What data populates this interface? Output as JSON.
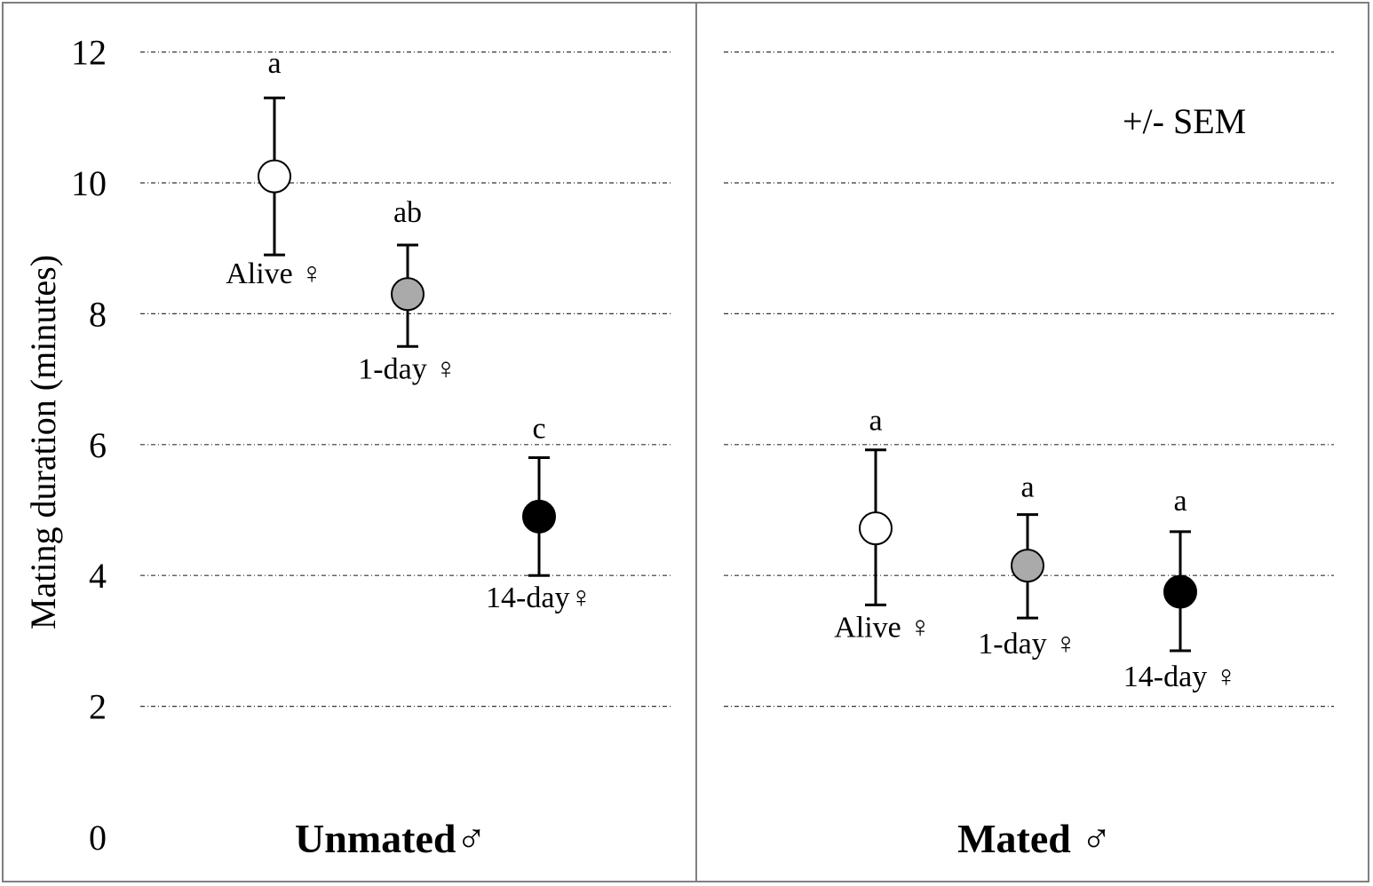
{
  "chart_data": {
    "type": "scatter",
    "ylabel": "Mating duration (minutes)",
    "ylim": [
      0,
      12
    ],
    "yticks": [
      "0",
      "2",
      "4",
      "6",
      "8",
      "10",
      "12"
    ],
    "grid": true,
    "note": "+/- SEM",
    "colors": {
      "alive": "#ffffff",
      "one_day": "#aaaaaa",
      "fourteen_day": "#000000"
    },
    "panels": [
      {
        "title": "Unmated♂",
        "points": [
          {
            "label": "Alive ♀",
            "y": 10.1,
            "err_low": 8.9,
            "err_high": 11.3,
            "letter": "a",
            "color": "#ffffff"
          },
          {
            "label": "1-day ♀",
            "y": 8.3,
            "err_low": 7.5,
            "err_high": 9.05,
            "letter": "ab",
            "color": "#aaaaaa"
          },
          {
            "label": "14-day♀",
            "y": 4.9,
            "err_low": 4.0,
            "err_high": 5.8,
            "letter": "c",
            "color": "#000000"
          }
        ]
      },
      {
        "title": "Mated ♂",
        "points": [
          {
            "label": "Alive ♀",
            "y": 4.72,
            "err_low": 3.55,
            "err_high": 5.92,
            "letter": "a",
            "color": "#ffffff"
          },
          {
            "label": "1-day ♀",
            "y": 4.15,
            "err_low": 3.35,
            "err_high": 4.93,
            "letter": "a",
            "color": "#aaaaaa"
          },
          {
            "label": "14-day ♀",
            "y": 3.75,
            "err_low": 2.85,
            "err_high": 4.67,
            "letter": "a",
            "color": "#000000"
          }
        ]
      }
    ]
  }
}
